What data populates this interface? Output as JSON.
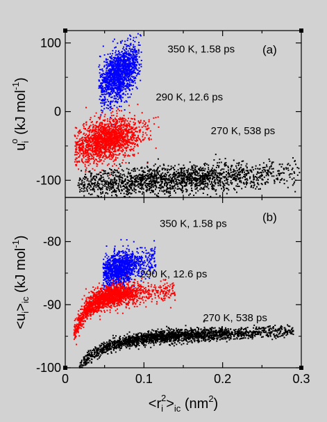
{
  "chart_data": [
    {
      "type": "scatter",
      "panel_label": "(a)",
      "ylabel": {
        "main": "u",
        "sub": "i",
        "sup": "o",
        "units_pre": " (kJ mol",
        "units_sup": "-1",
        "units_post": ")"
      },
      "xlim": [
        0,
        0.3
      ],
      "ylim": [
        -125,
        118
      ],
      "ytick_values": [
        -100,
        0,
        100
      ],
      "ytick_labels": [
        "-100",
        "0",
        "100"
      ],
      "grid": false,
      "series": [
        {
          "name": "350 K, 1.58 ps",
          "color": "#0000ff",
          "cluster": {
            "x_center": 0.068,
            "x_spread": 0.013,
            "x_min": 0.042,
            "x_max": 0.097,
            "y_center": 55,
            "y_spread": 18,
            "slope": 700,
            "n": 1500
          }
        },
        {
          "name": "290 K, 12.6 ps",
          "color": "#ff0000",
          "cluster": {
            "x_center": 0.052,
            "x_spread": 0.022,
            "x_min": 0.012,
            "x_max": 0.135,
            "y_center": -42,
            "y_spread": 15,
            "slope": 250,
            "n": 1800
          }
        },
        {
          "name": "270 K, 538 ps",
          "color": "#000000",
          "cluster": {
            "x_center": 0.13,
            "x_spread": 0.085,
            "x_min": 0.016,
            "x_max": 0.3,
            "y_center": -99,
            "y_spread": 10,
            "slope": 60,
            "n": 2000
          }
        }
      ],
      "annotations": [
        {
          "text": "350 K, 1.58 ps",
          "x": 0.13,
          "y": 86
        },
        {
          "text": "290 K, 12.6 ps",
          "x": 0.115,
          "y": 16
        },
        {
          "text": "270 K, 538 ps",
          "x": 0.185,
          "y": -33
        }
      ]
    },
    {
      "type": "scatter",
      "panel_label": "(b)",
      "ylabel": {
        "pre": "<u",
        "sub": "i",
        "post": ">",
        "sub2": "ic",
        "units_pre": " (kJ mol",
        "units_sup": "-1",
        "units_post": ")"
      },
      "xlabel": {
        "pre": "<r",
        "sub": "i",
        "sup": "2",
        "post": ">",
        "sub2": "ic",
        "units_pre": " (nm",
        "units_sup": "2",
        "units_post": ")"
      },
      "xlim": [
        0,
        0.3
      ],
      "ylim": [
        -100,
        -73
      ],
      "xtick_values": [
        0,
        0.1,
        0.2,
        0.3
      ],
      "xtick_labels": [
        "0",
        "0.1",
        "0.2",
        "0.3"
      ],
      "ytick_values": [
        -100,
        -90,
        -80
      ],
      "ytick_labels": [
        "-100",
        "-90",
        "-80"
      ],
      "grid": false,
      "series": [
        {
          "name": "350 K, 1.58 ps",
          "color": "#0000ff",
          "curve": {
            "a": -84.5,
            "k": 36,
            "x_min": 0.048,
            "x_max": 0.115,
            "x_mode": 0.068,
            "x_spread": 0.012,
            "y_spread": 1.4,
            "n": 1200
          }
        },
        {
          "name": "290 K, 12.6 ps",
          "color": "#ff0000",
          "curve": {
            "a": -88,
            "k": 0,
            "sat_amp": 6.5,
            "sat_scale": 0.02,
            "x_min": 0.011,
            "x_max": 0.14,
            "x_mode": 0.05,
            "x_spread": 0.022,
            "y_spread": 0.9,
            "n": 1800
          }
        },
        {
          "name": "270 K, 538 ps",
          "color": "#000000",
          "curve": {
            "a": -95,
            "k": 5,
            "sat_amp": 4.5,
            "sat_scale": 0.03,
            "x_min": 0.018,
            "x_max": 0.29,
            "x_mode": 0.12,
            "x_spread": 0.07,
            "y_spread": 0.5,
            "n": 2200
          }
        }
      ],
      "annotations": [
        {
          "text": "350 K, 1.58 ps",
          "x": 0.12,
          "y": -77.7
        },
        {
          "text": "290 K, 12.6 ps",
          "x": 0.095,
          "y": -85.7
        },
        {
          "text": "270 K, 538 ps",
          "x": 0.175,
          "y": -92.6
        }
      ]
    }
  ]
}
